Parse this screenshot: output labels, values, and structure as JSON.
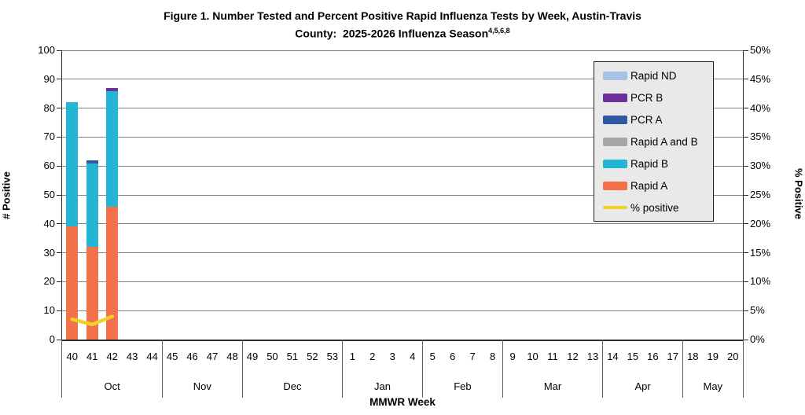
{
  "chart_data": {
    "type": "bar",
    "stacked": true,
    "title": {
      "line1": "Figure 1. Number Tested and Percent Positive Rapid Influenza Tests by Week, Austin-Travis",
      "line2": "County:  2025-2026 Influenza Season",
      "superscript": "4,5,6,8"
    },
    "x_axis_label": "MMWR Week",
    "y_left": {
      "label": "# Positive",
      "min": 0,
      "max": 100,
      "step": 10
    },
    "y_right": {
      "label": "% Positive",
      "min": 0,
      "max": 50,
      "step": 5,
      "suffix": "%"
    },
    "month_groups": [
      {
        "label": "Oct",
        "weeks": [
          40,
          41,
          42,
          43,
          44
        ]
      },
      {
        "label": "Nov",
        "weeks": [
          45,
          46,
          47,
          48
        ]
      },
      {
        "label": "Dec",
        "weeks": [
          49,
          50,
          51,
          52,
          53
        ]
      },
      {
        "label": "Jan",
        "weeks": [
          1,
          2,
          3,
          4
        ]
      },
      {
        "label": "Feb",
        "weeks": [
          5,
          6,
          7,
          8
        ]
      },
      {
        "label": "Mar",
        "weeks": [
          9,
          10,
          11,
          12,
          13
        ]
      },
      {
        "label": "Apr",
        "weeks": [
          14,
          15,
          16,
          17
        ]
      },
      {
        "label": "May",
        "weeks": [
          18,
          19,
          20
        ]
      }
    ],
    "stack_order": [
      "Rapid A",
      "Rapid B",
      "Rapid A and B",
      "PCR A",
      "PCR B",
      "Rapid ND"
    ],
    "series": [
      {
        "name": "Rapid A",
        "color": "#f3714b",
        "data": {
          "40": 39,
          "41": 32,
          "42": 46
        }
      },
      {
        "name": "Rapid B",
        "color": "#25b5d4",
        "data": {
          "40": 43,
          "41": 29,
          "42": 40
        }
      },
      {
        "name": "Rapid A and B",
        "color": "#a6a6a6",
        "data": {}
      },
      {
        "name": "PCR A",
        "color": "#2e58a2",
        "data": {
          "41": 1
        }
      },
      {
        "name": "PCR B",
        "color": "#6e2f9d",
        "data": {
          "42": 1
        }
      },
      {
        "name": "Rapid ND",
        "color": "#a6c3e6",
        "data": {}
      }
    ],
    "bar_totals": {
      "40": 82,
      "41": 62,
      "42": 87
    },
    "percent_line": {
      "name": "% positive",
      "color": "#f2d228",
      "data": {
        "40": 3.5,
        "41": 2.6,
        "42": 4.0
      }
    },
    "legend": [
      {
        "label": "Rapid ND",
        "color": "#a6c3e6",
        "type": "box"
      },
      {
        "label": "PCR B",
        "color": "#6e2f9d",
        "type": "box"
      },
      {
        "label": "PCR A",
        "color": "#2e58a2",
        "type": "box"
      },
      {
        "label": "Rapid A and B",
        "color": "#a6a6a6",
        "type": "box"
      },
      {
        "label": "Rapid B",
        "color": "#25b5d4",
        "type": "box"
      },
      {
        "label": "Rapid A",
        "color": "#f3714b",
        "type": "box"
      },
      {
        "label": "% positive",
        "color": "#f2d228",
        "type": "line"
      }
    ],
    "colors": {
      "gridline": "#828282",
      "axis": "#2b2b2b",
      "legend_bg": "#e9e9e9"
    },
    "legend_position": "top-right-inside",
    "grid": "horizontal-only"
  }
}
